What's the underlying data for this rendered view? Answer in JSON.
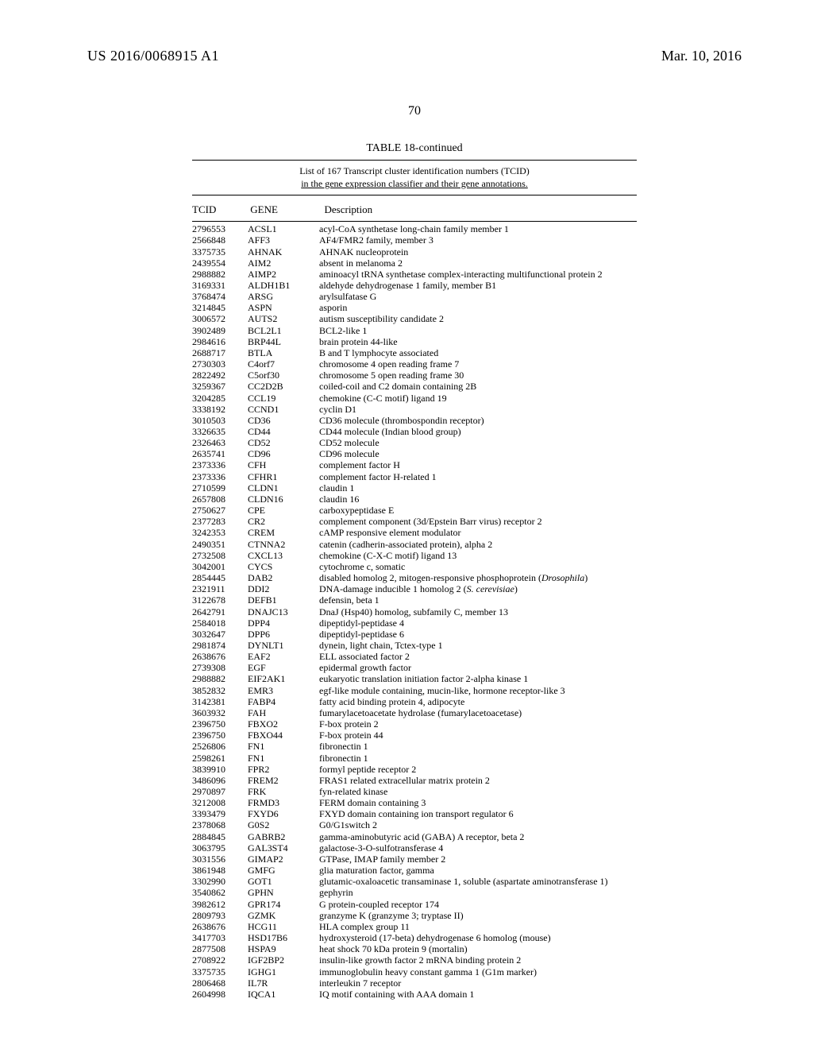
{
  "header": {
    "pub_number": "US 2016/0068915 A1",
    "pub_date": "Mar. 10, 2016",
    "page_number": "70"
  },
  "table": {
    "title": "TABLE 18-continued",
    "subtitle_line1": "List of 167 Transcript cluster identification numbers (TCID)",
    "subtitle_line2": "in the gene expression classifier and their gene annotations.",
    "col_tcid": "TCID",
    "col_gene": "GENE",
    "col_desc": "Description",
    "rows": [
      {
        "tcid": "2796553",
        "gene": "ACSL1",
        "desc": "acyl-CoA synthetase long-chain family member 1"
      },
      {
        "tcid": "2566848",
        "gene": "AFF3",
        "desc": "AF4/FMR2 family, member 3"
      },
      {
        "tcid": "3375735",
        "gene": "AHNAK",
        "desc": "AHNAK nucleoprotein"
      },
      {
        "tcid": "2439554",
        "gene": "AIM2",
        "desc": "absent in melanoma 2"
      },
      {
        "tcid": "2988882",
        "gene": "AIMP2",
        "desc": "aminoacyl tRNA synthetase complex-interacting multifunctional protein 2"
      },
      {
        "tcid": "3169331",
        "gene": "ALDH1B1",
        "desc": "aldehyde dehydrogenase 1 family, member B1"
      },
      {
        "tcid": "3768474",
        "gene": "ARSG",
        "desc": "arylsulfatase G"
      },
      {
        "tcid": "3214845",
        "gene": "ASPN",
        "desc": "asporin"
      },
      {
        "tcid": "3006572",
        "gene": "AUTS2",
        "desc": "autism susceptibility candidate 2"
      },
      {
        "tcid": "3902489",
        "gene": "BCL2L1",
        "desc": "BCL2-like 1"
      },
      {
        "tcid": "2984616",
        "gene": "BRP44L",
        "desc": "brain protein 44-like"
      },
      {
        "tcid": "2688717",
        "gene": "BTLA",
        "desc": "B and T lymphocyte associated"
      },
      {
        "tcid": "2730303",
        "gene": "C4orf7",
        "desc": "chromosome 4 open reading frame 7"
      },
      {
        "tcid": "2822492",
        "gene": "C5orf30",
        "desc": "chromosome 5 open reading frame 30"
      },
      {
        "tcid": "3259367",
        "gene": "CC2D2B",
        "desc": "coiled-coil and C2 domain containing 2B"
      },
      {
        "tcid": "3204285",
        "gene": "CCL19",
        "desc": "chemokine (C-C motif) ligand 19"
      },
      {
        "tcid": "3338192",
        "gene": "CCND1",
        "desc": "cyclin D1"
      },
      {
        "tcid": "3010503",
        "gene": "CD36",
        "desc": "CD36 molecule (thrombospondin receptor)"
      },
      {
        "tcid": "3326635",
        "gene": "CD44",
        "desc": "CD44 molecule (Indian blood group)"
      },
      {
        "tcid": "2326463",
        "gene": "CD52",
        "desc": "CD52 molecule"
      },
      {
        "tcid": "2635741",
        "gene": "CD96",
        "desc": "CD96 molecule"
      },
      {
        "tcid": "2373336",
        "gene": "CFH",
        "desc": "complement factor H"
      },
      {
        "tcid": "2373336",
        "gene": "CFHR1",
        "desc": "complement factor H-related 1"
      },
      {
        "tcid": "2710599",
        "gene": "CLDN1",
        "desc": "claudin 1"
      },
      {
        "tcid": "2657808",
        "gene": "CLDN16",
        "desc": "claudin 16"
      },
      {
        "tcid": "2750627",
        "gene": "CPE",
        "desc": "carboxypeptidase E"
      },
      {
        "tcid": "2377283",
        "gene": "CR2",
        "desc": "complement component (3d/Epstein Barr virus) receptor 2"
      },
      {
        "tcid": "3242353",
        "gene": "CREM",
        "desc": "cAMP responsive element modulator"
      },
      {
        "tcid": "2490351",
        "gene": "CTNNA2",
        "desc": "catenin (cadherin-associated protein), alpha 2"
      },
      {
        "tcid": "2732508",
        "gene": "CXCL13",
        "desc": "chemokine (C-X-C motif) ligand 13"
      },
      {
        "tcid": "3042001",
        "gene": "CYCS",
        "desc": "cytochrome c, somatic"
      },
      {
        "tcid": "2854445",
        "gene": "DAB2",
        "desc": "disabled homolog 2, mitogen-responsive phosphoprotein (<i>Drosophila</i>)"
      },
      {
        "tcid": "2321911",
        "gene": "DDI2",
        "desc": "DNA-damage inducible 1 homolog 2 (<i>S. cerevisiae</i>)"
      },
      {
        "tcid": "3122678",
        "gene": "DEFB1",
        "desc": "defensin, beta 1"
      },
      {
        "tcid": "2642791",
        "gene": "DNAJC13",
        "desc": "DnaJ (Hsp40) homolog, subfamily C, member 13"
      },
      {
        "tcid": "2584018",
        "gene": "DPP4",
        "desc": "dipeptidyl-peptidase 4"
      },
      {
        "tcid": "3032647",
        "gene": "DPP6",
        "desc": "dipeptidyl-peptidase 6"
      },
      {
        "tcid": "2981874",
        "gene": "DYNLT1",
        "desc": "dynein, light chain, Tctex-type 1"
      },
      {
        "tcid": "2638676",
        "gene": "EAF2",
        "desc": "ELL associated factor 2"
      },
      {
        "tcid": "2739308",
        "gene": "EGF",
        "desc": "epidermal growth factor"
      },
      {
        "tcid": "2988882",
        "gene": "EIF2AK1",
        "desc": "eukaryotic translation initiation factor 2-alpha kinase 1"
      },
      {
        "tcid": "3852832",
        "gene": "EMR3",
        "desc": "egf-like module containing, mucin-like, hormone receptor-like 3"
      },
      {
        "tcid": "3142381",
        "gene": "FABP4",
        "desc": "fatty acid binding protein 4, adipocyte"
      },
      {
        "tcid": "3603932",
        "gene": "FAH",
        "desc": "fumarylacetoacetate hydrolase (fumarylacetoacetase)"
      },
      {
        "tcid": "2396750",
        "gene": "FBXO2",
        "desc": "F-box protein 2"
      },
      {
        "tcid": "2396750",
        "gene": "FBXO44",
        "desc": "F-box protein 44"
      },
      {
        "tcid": "2526806",
        "gene": "FN1",
        "desc": "fibronectin 1"
      },
      {
        "tcid": "2598261",
        "gene": "FN1",
        "desc": "fibronectin 1"
      },
      {
        "tcid": "3839910",
        "gene": "FPR2",
        "desc": "formyl peptide receptor 2"
      },
      {
        "tcid": "3486096",
        "gene": "FREM2",
        "desc": "FRAS1 related extracellular matrix protein 2"
      },
      {
        "tcid": "2970897",
        "gene": "FRK",
        "desc": "fyn-related kinase"
      },
      {
        "tcid": "3212008",
        "gene": "FRMD3",
        "desc": "FERM domain containing 3"
      },
      {
        "tcid": "3393479",
        "gene": "FXYD6",
        "desc": "FXYD domain containing ion transport regulator 6"
      },
      {
        "tcid": "2378068",
        "gene": "G0S2",
        "desc": "G0/G1switch 2"
      },
      {
        "tcid": "2884845",
        "gene": "GABRB2",
        "desc": "gamma-aminobutyric acid (GABA) A receptor, beta 2"
      },
      {
        "tcid": "3063795",
        "gene": "GAL3ST4",
        "desc": "galactose-3-O-sulfotransferase 4"
      },
      {
        "tcid": "3031556",
        "gene": "GIMAP2",
        "desc": "GTPase, IMAP family member 2"
      },
      {
        "tcid": "3861948",
        "gene": "GMFG",
        "desc": "glia maturation factor, gamma"
      },
      {
        "tcid": "3302990",
        "gene": "GOT1",
        "desc": "glutamic-oxaloacetic transaminase 1, soluble (aspartate aminotransferase 1)"
      },
      {
        "tcid": "3540862",
        "gene": "GPHN",
        "desc": "gephyrin"
      },
      {
        "tcid": "3982612",
        "gene": "GPR174",
        "desc": "G protein-coupled receptor 174"
      },
      {
        "tcid": "2809793",
        "gene": "GZMK",
        "desc": "granzyme K (granzyme 3; tryptase II)"
      },
      {
        "tcid": "2638676",
        "gene": "HCG11",
        "desc": "HLA complex group 11"
      },
      {
        "tcid": "3417703",
        "gene": "HSD17B6",
        "desc": "hydroxysteroid (17-beta) dehydrogenase 6 homolog (mouse)"
      },
      {
        "tcid": "2877508",
        "gene": "HSPA9",
        "desc": "heat shock 70 kDa protein 9 (mortalin)"
      },
      {
        "tcid": "2708922",
        "gene": "IGF2BP2",
        "desc": "insulin-like growth factor 2 mRNA binding protein 2"
      },
      {
        "tcid": "3375735",
        "gene": "IGHG1",
        "desc": "immunoglobulin heavy constant gamma 1 (G1m marker)"
      },
      {
        "tcid": "2806468",
        "gene": "IL7R",
        "desc": "interleukin 7 receptor"
      },
      {
        "tcid": "2604998",
        "gene": "IQCA1",
        "desc": "IQ motif containing with AAA domain 1"
      }
    ]
  }
}
